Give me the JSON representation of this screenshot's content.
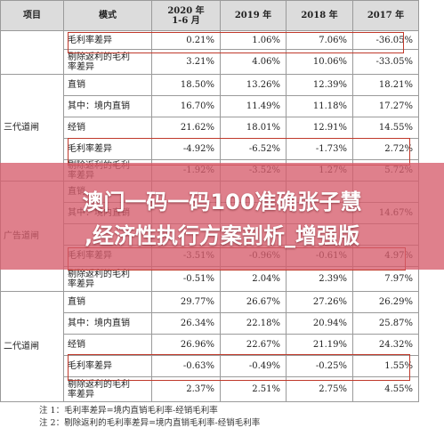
{
  "table": {
    "headers": [
      "项目",
      "模式",
      "2020 年\n1-6 月",
      "2019 年",
      "2018 年",
      "2017 年"
    ],
    "segments": [
      "",
      "三代道闸",
      "广告道闸",
      "二代道闸"
    ],
    "rows": [
      {
        "name": "毛利率差异",
        "v": [
          "0.21%",
          "1.06%",
          "7.06%",
          "-36.05%"
        ]
      },
      {
        "name": "剔除返利的毛利\n率差异",
        "v": [
          "3.21%",
          "4.06%",
          "10.06%",
          "-33.05%"
        ]
      },
      {
        "name": "直销",
        "v": [
          "18.50%",
          "13.26%",
          "12.39%",
          "18.21%"
        ]
      },
      {
        "name": "其中：境内直销",
        "v": [
          "16.70%",
          "11.49%",
          "11.18%",
          "17.27%"
        ]
      },
      {
        "name": "经销",
        "v": [
          "21.62%",
          "18.01%",
          "12.91%",
          "14.55%"
        ]
      },
      {
        "name": "毛利率差异",
        "v": [
          "-4.92%",
          "-6.52%",
          "-1.73%",
          "2.72%"
        ]
      },
      {
        "name": "剔除返利的毛利\n率差异",
        "v": [
          "-1.92%",
          "-3.52%",
          "1.27%",
          "5.72%"
        ]
      },
      {
        "name": "直销",
        "v": [
          "",
          "",
          "",
          ""
        ]
      },
      {
        "name": "其中：境内直销",
        "v": [
          "",
          "",
          "",
          "14.67%"
        ]
      },
      {
        "name": "",
        "v": [
          "",
          "",
          "",
          ""
        ]
      },
      {
        "name": "毛利率差异",
        "v": [
          "-3.51%",
          "-0.96%",
          "-0.61%",
          "4.97%"
        ]
      },
      {
        "name": "剔除返利的毛利\n率差异",
        "v": [
          "-0.51%",
          "2.04%",
          "2.39%",
          "7.97%"
        ]
      },
      {
        "name": "直销",
        "v": [
          "29.77%",
          "26.67%",
          "27.26%",
          "26.29%"
        ]
      },
      {
        "name": "其中：境内直销",
        "v": [
          "26.34%",
          "22.18%",
          "20.94%",
          "25.87%"
        ]
      },
      {
        "name": "经销",
        "v": [
          "26.96%",
          "22.67%",
          "21.19%",
          "24.32%"
        ]
      },
      {
        "name": "毛利率差异",
        "v": [
          "-0.63%",
          "-0.49%",
          "-0.25%",
          "1.55%"
        ]
      },
      {
        "name": "剔除返利的毛利\n率差异",
        "v": [
          "2.37%",
          "2.51%",
          "2.75%",
          "4.55%"
        ]
      }
    ]
  },
  "notes": {
    "line1": "注 1：毛利率差异=境内直销毛利率-经销毛利率",
    "line2": "注 2：剔除返利的毛利率差异=境内直销毛利率-经销毛利率"
  },
  "banner": {
    "line1": "澳门一码一码100准确张子慧",
    "line2": ",经济性执行方案剖析_增强版"
  },
  "colors": {
    "highlight_box": "#c0392b",
    "banner": "#d65c6c"
  }
}
